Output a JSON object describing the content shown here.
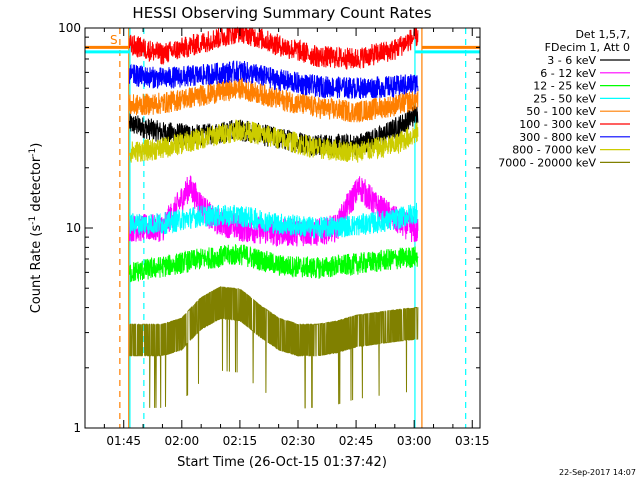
{
  "chart_data": {
    "type": "line",
    "title": "HESSI Observing Summary Count Rates",
    "ylabel_prefix": "Count Rate (s",
    "ylabel_sup1": "-1",
    "ylabel_mid": " detector",
    "ylabel_sup2": "-1",
    "ylabel_suffix": ")",
    "xlabel": "Start Time (26-Oct-15 01:37:42)",
    "yscale": "log",
    "ylim": [
      1,
      100
    ],
    "xlim_minutes": [
      95,
      197
    ],
    "y_ticks": [
      {
        "value": 1,
        "label": "1"
      },
      {
        "value": 10,
        "label": "10"
      },
      {
        "value": 100,
        "label": "100"
      }
    ],
    "x_ticks": [
      {
        "value": 105,
        "label": "01:45"
      },
      {
        "value": 120,
        "label": "02:00"
      },
      {
        "value": 135,
        "label": "02:15"
      },
      {
        "value": 150,
        "label": "02:30"
      },
      {
        "value": 165,
        "label": "02:45"
      },
      {
        "value": 180,
        "label": "03:00"
      },
      {
        "value": 195,
        "label": "03:15"
      }
    ],
    "legend_header": [
      "Det 1,5,7,",
      "FDecim 1, Att 0"
    ],
    "legend_position": "right",
    "saa_marker": "S",
    "footer": "22-Sep-2017 14:07",
    "data_range_minutes": [
      106.5,
      181
    ],
    "vertical_markers": [
      {
        "x": 104,
        "color": "#ff7f00",
        "style": "dashed"
      },
      {
        "x": 106.3,
        "color": "#ff7f00",
        "style": "solid"
      },
      {
        "x": 106.6,
        "color": "#00ffff",
        "style": "solid"
      },
      {
        "x": 110.2,
        "color": "#00ffff",
        "style": "dashed"
      },
      {
        "x": 180.2,
        "color": "#00ffff",
        "style": "solid"
      },
      {
        "x": 182,
        "color": "#ff7f00",
        "style": "solid"
      },
      {
        "x": 193.3,
        "color": "#00ffff",
        "style": "dashed"
      }
    ],
    "horizontal_markers": [
      {
        "x_start": 95,
        "x_end": 106.3,
        "y": 80,
        "color": "#ff7f00"
      },
      {
        "x_start": 182,
        "x_end": 197,
        "y": 80,
        "color": "#ff7f00"
      },
      {
        "x_start": 95,
        "x_end": 106.6,
        "y": 76,
        "color": "#00ffff"
      },
      {
        "x_start": 180.2,
        "x_end": 197,
        "y": 76,
        "color": "#00ffff"
      }
    ],
    "series": [
      {
        "name": "3 - 6 keV",
        "color": "#000000",
        "x": [
          107,
          115,
          125,
          135,
          145,
          155,
          165,
          172,
          178,
          181
        ],
        "y": [
          33,
          30,
          29,
          31,
          28,
          26,
          26,
          29,
          34,
          38
        ]
      },
      {
        "name": "6 - 12 keV",
        "color": "#ff00ff",
        "x": [
          107,
          115,
          118,
          122,
          125,
          128,
          135,
          145,
          155,
          160,
          163,
          166,
          170,
          175,
          181
        ],
        "y": [
          10,
          10,
          12,
          16,
          13,
          11,
          10,
          9.5,
          9.5,
          10,
          13,
          16,
          13,
          11,
          9.5
        ]
      },
      {
        "name": "12 - 25 keV",
        "color": "#00ff00",
        "x": [
          107,
          115,
          125,
          135,
          145,
          155,
          165,
          175,
          181
        ],
        "y": [
          6,
          6.4,
          7,
          7.4,
          6.5,
          6.3,
          6.6,
          7,
          7.2
        ]
      },
      {
        "name": "25 - 50 keV",
        "color": "#00ffff",
        "x": [
          107,
          115,
          125,
          135,
          145,
          155,
          165,
          175,
          181
        ],
        "y": [
          10.5,
          10.5,
          11.5,
          11.5,
          10.5,
          10,
          10.3,
          11,
          12
        ]
      },
      {
        "name": "50 - 100 keV",
        "color": "#ff7f00",
        "x": [
          107,
          115,
          125,
          135,
          145,
          155,
          165,
          175,
          181
        ],
        "y": [
          41,
          42,
          46,
          50,
          44,
          40,
          38,
          41,
          44
        ]
      },
      {
        "name": "100 - 300 keV",
        "color": "#ff0000",
        "x": [
          107,
          115,
          125,
          135,
          145,
          155,
          165,
          175,
          181
        ],
        "y": [
          82,
          74,
          84,
          96,
          82,
          72,
          70,
          78,
          92
        ]
      },
      {
        "name": "300 - 800 keV",
        "color": "#0000ff",
        "x": [
          107,
          115,
          125,
          135,
          145,
          155,
          165,
          175,
          181
        ],
        "y": [
          58,
          56,
          58,
          61,
          55,
          51,
          50,
          51,
          53
        ]
      },
      {
        "name": "800 - 7000 keV",
        "color": "#cccc00",
        "x": [
          107,
          115,
          125,
          135,
          145,
          155,
          165,
          175,
          181
        ],
        "y": [
          24,
          25,
          28,
          31,
          28,
          25,
          24,
          26,
          30
        ]
      },
      {
        "name": "7000 - 20000 keV",
        "color": "#808000",
        "x": [
          107,
          115,
          120,
          125,
          130,
          135,
          140,
          145,
          150,
          155,
          160,
          165,
          170,
          175,
          181
        ],
        "y": [
          2.8,
          2.8,
          3,
          3.8,
          4.3,
          4.2,
          3.5,
          3,
          2.8,
          2.8,
          2.9,
          3.1,
          3.2,
          3.3,
          3.4
        ]
      }
    ]
  }
}
